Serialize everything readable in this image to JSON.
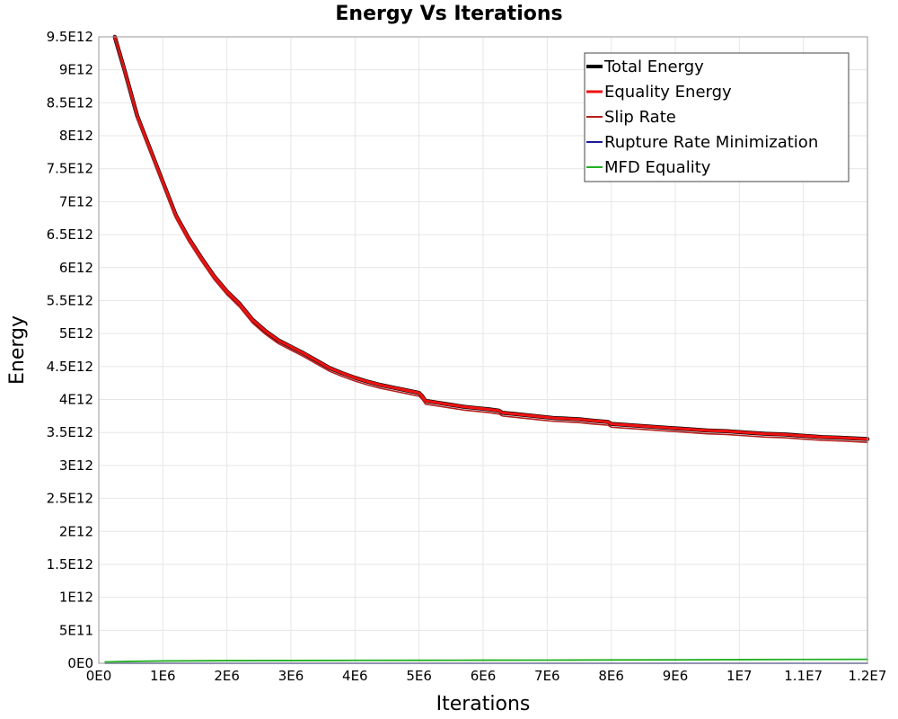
{
  "chart_data": {
    "type": "line",
    "title": "Energy Vs Iterations",
    "xlabel": "Iterations",
    "ylabel": "Energy",
    "xlim": [
      0,
      12000000
    ],
    "ylim": [
      0,
      9500000000000
    ],
    "x_ticks": [
      {
        "value": 0,
        "label": "0E0"
      },
      {
        "value": 1000000,
        "label": "1E6"
      },
      {
        "value": 2000000,
        "label": "2E6"
      },
      {
        "value": 3000000,
        "label": "3E6"
      },
      {
        "value": 4000000,
        "label": "4E6"
      },
      {
        "value": 5000000,
        "label": "5E6"
      },
      {
        "value": 6000000,
        "label": "6E6"
      },
      {
        "value": 7000000,
        "label": "7E6"
      },
      {
        "value": 8000000,
        "label": "8E6"
      },
      {
        "value": 9000000,
        "label": "9E6"
      },
      {
        "value": 10000000,
        "label": "1E7"
      },
      {
        "value": 11000000,
        "label": "1.1E7"
      },
      {
        "value": 12000000,
        "label": "1.2E7"
      }
    ],
    "y_ticks": [
      {
        "value": 0,
        "label": "0E0"
      },
      {
        "value": 500000000000,
        "label": "5E11"
      },
      {
        "value": 1000000000000,
        "label": "1E12"
      },
      {
        "value": 1500000000000,
        "label": "1.5E12"
      },
      {
        "value": 2000000000000,
        "label": "2E12"
      },
      {
        "value": 2500000000000,
        "label": "2.5E12"
      },
      {
        "value": 3000000000000,
        "label": "3E12"
      },
      {
        "value": 3500000000000,
        "label": "3.5E12"
      },
      {
        "value": 4000000000000,
        "label": "4E12"
      },
      {
        "value": 4500000000000,
        "label": "4.5E12"
      },
      {
        "value": 5000000000000,
        "label": "5E12"
      },
      {
        "value": 5500000000000,
        "label": "5.5E12"
      },
      {
        "value": 6000000000000,
        "label": "6E12"
      },
      {
        "value": 6500000000000,
        "label": "6.5E12"
      },
      {
        "value": 7000000000000,
        "label": "7E12"
      },
      {
        "value": 7500000000000,
        "label": "7.5E12"
      },
      {
        "value": 8000000000000,
        "label": "8E12"
      },
      {
        "value": 8500000000000,
        "label": "8.5E12"
      },
      {
        "value": 9000000000000,
        "label": "9E12"
      },
      {
        "value": 9500000000000,
        "label": "9.5E12"
      }
    ],
    "grid": true,
    "legend_position": "top-right",
    "series": [
      {
        "name": "Total Energy",
        "color": "#000000",
        "x": [
          250000,
          400000,
          600000,
          800000,
          1000000,
          1200000,
          1400000,
          1600000,
          1800000,
          2000000,
          2200000,
          2400000,
          2600000,
          2800000,
          3000000,
          3200000,
          3400000,
          3600000,
          3800000,
          4000000,
          4200000,
          4400000,
          4600000,
          4800000,
          5000000,
          5050000,
          5100000,
          5300000,
          5500000,
          5700000,
          5900000,
          6100000,
          6250000,
          6300000,
          6500000,
          6700000,
          6900000,
          7100000,
          7300000,
          7500000,
          7700000,
          7950000,
          8000000,
          8300000,
          8600000,
          8900000,
          9200000,
          9500000,
          9800000,
          10100000,
          10400000,
          10700000,
          11000000,
          11300000,
          11600000,
          12000000
        ],
        "values": [
          9550000000000,
          9000000000000,
          8300000000000,
          7800000000000,
          7300000000000,
          6800000000000,
          6450000000000,
          6150000000000,
          5870000000000,
          5640000000000,
          5450000000000,
          5210000000000,
          5040000000000,
          4900000000000,
          4800000000000,
          4700000000000,
          4590000000000,
          4480000000000,
          4400000000000,
          4330000000000,
          4270000000000,
          4220000000000,
          4180000000000,
          4140000000000,
          4100000000000,
          4050000000000,
          3980000000000,
          3950000000000,
          3920000000000,
          3890000000000,
          3870000000000,
          3850000000000,
          3830000000000,
          3800000000000,
          3780000000000,
          3760000000000,
          3740000000000,
          3720000000000,
          3710000000000,
          3700000000000,
          3680000000000,
          3660000000000,
          3630000000000,
          3610000000000,
          3590000000000,
          3570000000000,
          3550000000000,
          3530000000000,
          3520000000000,
          3500000000000,
          3480000000000,
          3470000000000,
          3450000000000,
          3430000000000,
          3420000000000,
          3400000000000
        ]
      },
      {
        "name": "Equality Energy",
        "color": "#ee1111",
        "x": [
          250000,
          400000,
          600000,
          800000,
          1000000,
          1200000,
          1400000,
          1600000,
          1800000,
          2000000,
          2200000,
          2400000,
          2600000,
          2800000,
          3000000,
          3200000,
          3400000,
          3600000,
          3800000,
          4000000,
          4200000,
          4400000,
          4600000,
          4800000,
          5000000,
          5050000,
          5100000,
          5300000,
          5500000,
          5700000,
          5900000,
          6100000,
          6250000,
          6300000,
          6500000,
          6700000,
          6900000,
          7100000,
          7300000,
          7500000,
          7700000,
          7950000,
          8000000,
          8300000,
          8600000,
          8900000,
          9200000,
          9500000,
          9800000,
          10100000,
          10400000,
          10700000,
          11000000,
          11300000,
          11600000,
          12000000
        ],
        "values": [
          9550000000000,
          9000000000000,
          8300000000000,
          7800000000000,
          7300000000000,
          6800000000000,
          6450000000000,
          6150000000000,
          5870000000000,
          5640000000000,
          5450000000000,
          5210000000000,
          5040000000000,
          4900000000000,
          4800000000000,
          4700000000000,
          4590000000000,
          4480000000000,
          4400000000000,
          4330000000000,
          4270000000000,
          4220000000000,
          4180000000000,
          4140000000000,
          4100000000000,
          4050000000000,
          3980000000000,
          3950000000000,
          3920000000000,
          3890000000000,
          3870000000000,
          3850000000000,
          3830000000000,
          3800000000000,
          3780000000000,
          3760000000000,
          3740000000000,
          3720000000000,
          3710000000000,
          3700000000000,
          3680000000000,
          3660000000000,
          3630000000000,
          3610000000000,
          3590000000000,
          3570000000000,
          3550000000000,
          3530000000000,
          3520000000000,
          3500000000000,
          3480000000000,
          3470000000000,
          3450000000000,
          3430000000000,
          3420000000000,
          3400000000000
        ]
      },
      {
        "name": "Slip Rate",
        "color": "#b51c1c",
        "x": [
          250000,
          400000,
          600000,
          800000,
          1000000,
          1200000,
          1400000,
          1600000,
          1800000,
          2000000,
          2200000,
          2400000,
          2600000,
          2800000,
          3000000,
          3200000,
          3400000,
          3600000,
          3800000,
          4000000,
          4200000,
          4400000,
          4600000,
          4800000,
          5000000,
          5050000,
          5100000,
          5300000,
          5500000,
          5700000,
          5900000,
          6100000,
          6250000,
          6300000,
          6500000,
          6700000,
          6900000,
          7100000,
          7300000,
          7500000,
          7700000,
          7950000,
          8000000,
          8300000,
          8600000,
          8900000,
          9200000,
          9500000,
          9800000,
          10100000,
          10400000,
          10700000,
          11000000,
          11300000,
          11600000,
          12000000
        ],
        "values": [
          9500000000000,
          8950000000000,
          8250000000000,
          7750000000000,
          7250000000000,
          6750000000000,
          6400000000000,
          6100000000000,
          5820000000000,
          5590000000000,
          5400000000000,
          5160000000000,
          4990000000000,
          4850000000000,
          4750000000000,
          4650000000000,
          4540000000000,
          4430000000000,
          4350000000000,
          4280000000000,
          4220000000000,
          4170000000000,
          4130000000000,
          4090000000000,
          4050000000000,
          4000000000000,
          3930000000000,
          3900000000000,
          3870000000000,
          3840000000000,
          3820000000000,
          3800000000000,
          3780000000000,
          3750000000000,
          3730000000000,
          3710000000000,
          3690000000000,
          3670000000000,
          3660000000000,
          3650000000000,
          3630000000000,
          3610000000000,
          3580000000000,
          3560000000000,
          3540000000000,
          3520000000000,
          3500000000000,
          3480000000000,
          3470000000000,
          3450000000000,
          3430000000000,
          3420000000000,
          3400000000000,
          3380000000000,
          3370000000000,
          3350000000000
        ]
      },
      {
        "name": "Rupture Rate Minimization",
        "color": "#1a1a9a",
        "x": [
          100000,
          2000000,
          4000000,
          6000000,
          8000000,
          10000000,
          12000000
        ],
        "values": [
          0,
          0,
          0,
          0,
          0,
          0,
          0
        ]
      },
      {
        "name": "MFD Equality",
        "color": "#22b022",
        "x": [
          100000,
          500000,
          1000000,
          2000000,
          3000000,
          4000000,
          5000000,
          6000000,
          7000000,
          8000000,
          9000000,
          10000000,
          11000000,
          12000000
        ],
        "values": [
          20000000000,
          28000000000,
          35000000000,
          40000000000,
          42000000000,
          44000000000,
          45000000000,
          47000000000,
          48000000000,
          50000000000,
          52000000000,
          55000000000,
          58000000000,
          60000000000
        ]
      }
    ]
  }
}
